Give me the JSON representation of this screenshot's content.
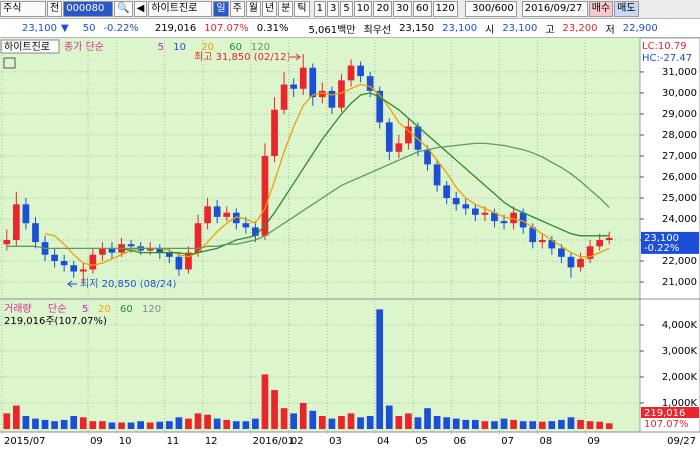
{
  "toolbar": {
    "market": "주식",
    "mode": "전",
    "code": "000080",
    "name": "하이트진로",
    "periods": [
      "일",
      "주",
      "월",
      "년",
      "분",
      "틱"
    ],
    "intervals": [
      "1",
      "3",
      "5",
      "10",
      "20",
      "30",
      "60",
      "120"
    ],
    "count": "300",
    "count_max": "/600",
    "date": "2016/09/27",
    "buy": "매수",
    "sell": "매도"
  },
  "quote": {
    "price": "23,100",
    "change": "50",
    "change_pct": "-0.22%",
    "volume": "219,016",
    "volume_pct": "107.07%",
    "turnover": "0.31%",
    "amount": "5,061백만",
    "best": "최우선",
    "ask": "23,150",
    "bid": "23,100",
    "open_label": "시",
    "open": "23,100",
    "high_label": "고",
    "high": "23,200",
    "low_label": "저",
    "low": "22,900"
  },
  "chart_data": [
    {
      "type": "candlestick",
      "title": "하이트진로",
      "ma_title": "종가 단순",
      "categories": [
        "2015/07",
        null,
        null,
        null,
        null,
        null,
        null,
        null,
        null,
        "09",
        null,
        null,
        "10",
        null,
        null,
        null,
        null,
        "11",
        null,
        null,
        null,
        "12",
        null,
        null,
        null,
        null,
        "2016/01",
        null,
        null,
        null,
        "02",
        null,
        null,
        null,
        "03",
        null,
        null,
        null,
        null,
        "04",
        null,
        null,
        null,
        "05",
        null,
        null,
        null,
        "06",
        null,
        null,
        null,
        null,
        "07",
        null,
        null,
        null,
        "08",
        null,
        null,
        null,
        null,
        "09",
        null,
        null
      ],
      "date_label": "09/27",
      "open": [
        22800,
        23000,
        24700,
        23800,
        22900,
        22300,
        22000,
        21800,
        21500,
        21600,
        22300,
        22600,
        22400,
        22800,
        22700,
        22500,
        22600,
        22400,
        22200,
        21600,
        22400,
        23800,
        24600,
        24100,
        24300,
        23800,
        23600,
        23200,
        27000,
        29200,
        30400,
        30200,
        31200,
        29800,
        30100,
        29300,
        30600,
        31300,
        30800,
        30100,
        28600,
        27200,
        27600,
        28400,
        27300,
        26600,
        25600,
        25000,
        24700,
        24500,
        24200,
        24300,
        23900,
        23800,
        24300,
        23600,
        22900,
        23000,
        22600,
        22200,
        21700,
        22100,
        22700,
        23000
      ],
      "high": [
        23500,
        25300,
        25000,
        24100,
        23200,
        22600,
        22300,
        22000,
        21900,
        22600,
        22900,
        22900,
        23100,
        23000,
        22900,
        22900,
        22800,
        22600,
        22400,
        22700,
        24200,
        25000,
        24900,
        24600,
        24500,
        24100,
        23900,
        27600,
        29800,
        31000,
        30700,
        31850,
        31400,
        30500,
        30300,
        30900,
        31600,
        31500,
        31000,
        30300,
        28800,
        28000,
        28800,
        28600,
        27500,
        26800,
        25800,
        25300,
        25000,
        24700,
        24600,
        24500,
        24200,
        24600,
        24500,
        23800,
        23300,
        23200,
        22800,
        22400,
        22400,
        23000,
        23300,
        23400
      ],
      "low": [
        22500,
        22700,
        23500,
        22600,
        22000,
        21700,
        21500,
        21200,
        20850,
        21400,
        22000,
        22100,
        22200,
        22400,
        22300,
        22300,
        22100,
        21900,
        21300,
        21400,
        22200,
        23500,
        23800,
        23900,
        23500,
        23300,
        22900,
        23000,
        26700,
        29000,
        29800,
        29900,
        29400,
        29500,
        29000,
        29100,
        30300,
        30500,
        29800,
        28300,
        26800,
        26900,
        27300,
        27000,
        26300,
        25300,
        24700,
        24400,
        24200,
        23900,
        23900,
        23600,
        23500,
        23500,
        23300,
        22600,
        22600,
        22300,
        21900,
        21200,
        21500,
        21900,
        22500,
        22800
      ],
      "close": [
        23000,
        24700,
        23800,
        22900,
        22300,
        22000,
        21800,
        21500,
        21600,
        22300,
        22600,
        22400,
        22800,
        22700,
        22500,
        22600,
        22400,
        22200,
        21600,
        22400,
        23800,
        24600,
        24100,
        24300,
        23800,
        23600,
        23200,
        27000,
        29200,
        30400,
        30200,
        31200,
        29800,
        30100,
        29300,
        30600,
        31300,
        30800,
        30100,
        28600,
        27200,
        27600,
        28400,
        27300,
        26600,
        25600,
        25000,
        24700,
        24500,
        24200,
        24300,
        23900,
        23800,
        24300,
        23600,
        22900,
        23000,
        22600,
        22200,
        21700,
        22100,
        22700,
        23000,
        23100
      ],
      "up_color": "#e8262c",
      "down_color": "#1c4fd6",
      "ma_series": [
        {
          "name": "5",
          "color": "#d020c8"
        },
        {
          "name": "10",
          "color": "#1c4fd6"
        },
        {
          "name": "20",
          "color": "#eea000",
          "values": [
            null,
            null,
            null,
            null,
            23300,
            23200,
            22800,
            22300,
            21900,
            21800,
            21900,
            22100,
            22300,
            22500,
            22600,
            22600,
            22600,
            22500,
            22300,
            22200,
            22400,
            22900,
            23400,
            23800,
            24100,
            24000,
            23800,
            24500,
            25800,
            27200,
            28400,
            29400,
            29900,
            30000,
            29900,
            30000,
            30200,
            30400,
            30300,
            29900,
            29300,
            28600,
            28200,
            27800,
            27400,
            26800,
            26200,
            25500,
            25000,
            24700,
            24500,
            24300,
            24100,
            24000,
            23900,
            23600,
            23300,
            23000,
            22700,
            22400,
            22200,
            22200,
            22400,
            22600
          ]
        },
        {
          "name": "60",
          "color": "#2e8b2e",
          "values": [
            null,
            null,
            null,
            null,
            null,
            null,
            null,
            null,
            null,
            null,
            null,
            null,
            22600,
            22500,
            22400,
            22400,
            22400,
            22400,
            22400,
            22300,
            22400,
            22500,
            22600,
            22800,
            23000,
            23100,
            23200,
            23700,
            24300,
            25000,
            25700,
            26400,
            27100,
            27800,
            28400,
            29000,
            29500,
            29900,
            30000,
            29800,
            29500,
            29200,
            28800,
            28400,
            28000,
            27600,
            27200,
            26800,
            26400,
            26000,
            25600,
            25200,
            24800,
            24500,
            24300,
            24100,
            23900,
            23700,
            23500,
            23300,
            23200,
            23200,
            23200,
            23200
          ]
        },
        {
          "name": "120",
          "color": "#5f9a5f",
          "values": [
            22700,
            22700,
            22700,
            22700,
            22600,
            22600,
            22600,
            22600,
            22600,
            22600,
            22600,
            22600,
            22600,
            22600,
            22600,
            22600,
            22600,
            22600,
            22600,
            22600,
            22600,
            22700,
            22700,
            22800,
            22800,
            22900,
            23000,
            23200,
            23500,
            23800,
            24100,
            24400,
            24700,
            25000,
            25300,
            25600,
            25800,
            26000,
            26200,
            26400,
            26600,
            26800,
            27000,
            27200,
            27300,
            27400,
            27450,
            27500,
            27550,
            27600,
            27600,
            27550,
            27500,
            27400,
            27300,
            27150,
            26950,
            26700,
            26450,
            26150,
            25800,
            25400,
            25000,
            24550
          ]
        }
      ],
      "ylim": [
        20240,
        32520
      ],
      "yticks": [
        {
          "value": 21000,
          "label": "21,000"
        },
        {
          "value": 22000,
          "label": "22,000"
        },
        {
          "value": 23000,
          "label": "23,000"
        },
        {
          "value": 24000,
          "label": "24,000"
        },
        {
          "value": 25000,
          "label": "25,000"
        },
        {
          "value": 26000,
          "label": "26,000"
        },
        {
          "value": 27000,
          "label": "27,000"
        },
        {
          "value": 28000,
          "label": "28,000"
        },
        {
          "value": 29000,
          "label": "29,000"
        },
        {
          "value": 30000,
          "label": "30,000"
        },
        {
          "value": 31000,
          "label": "31,000"
        }
      ],
      "grid": true,
      "annotations": {
        "high": "최고 31,850 (02/12)",
        "low": "최저 20,850 (08/24)"
      },
      "lc_label": "LC:10.79",
      "hc_label": "HC:-27.47",
      "last_label": "23,100",
      "last_change": "-0.22%"
    },
    {
      "type": "bar",
      "title": "거래량",
      "ma_title": "단순",
      "ma_names": [
        "5",
        "20",
        "60",
        "120"
      ],
      "ma_colors": [
        "#d020c8",
        "#eea000",
        "#2e8b2e",
        "#888888"
      ],
      "subtitle": "219,016주(107.07%)",
      "values": [
        600000,
        900000,
        500000,
        400000,
        350000,
        300000,
        350000,
        500000,
        450000,
        300000,
        300000,
        250000,
        250000,
        250000,
        300000,
        250000,
        280000,
        300000,
        450000,
        400000,
        600000,
        550000,
        400000,
        350000,
        300000,
        300000,
        400000,
        2100000,
        1500000,
        800000,
        600000,
        1000000,
        700000,
        500000,
        400000,
        500000,
        600000,
        450000,
        500000,
        4600000,
        900000,
        500000,
        600000,
        450000,
        800000,
        500000,
        450000,
        400000,
        350000,
        350000,
        300000,
        300000,
        400000,
        350000,
        300000,
        300000,
        280000,
        300000,
        350000,
        450000,
        350000,
        300000,
        280000,
        219016
      ],
      "ylim": [
        0,
        4960000
      ],
      "yticks": [
        {
          "value": 1000000,
          "label": "1,000K"
        },
        {
          "value": 2000000,
          "label": "2,000K"
        },
        {
          "value": 3000000,
          "label": "3,000K"
        },
        {
          "value": 4000000,
          "label": "4,000K"
        }
      ],
      "last_label": "219,016",
      "last_pct": "107.07%"
    }
  ]
}
